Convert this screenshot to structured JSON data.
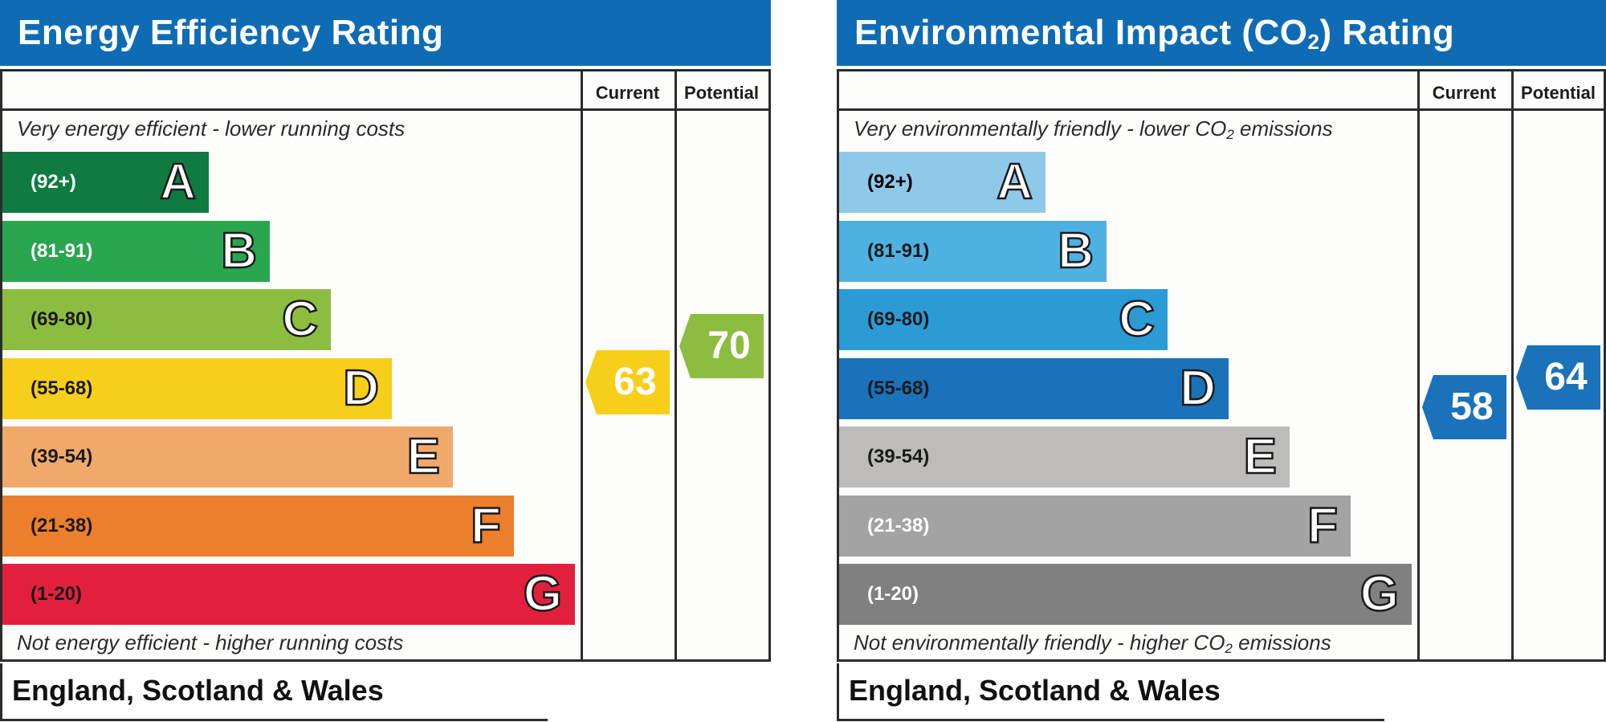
{
  "panels": {
    "eer": {
      "title": "Energy Efficiency Rating",
      "col_current": "Current",
      "col_potential": "Potential",
      "top_caption": "Very energy efficient - lower running costs",
      "bottom_caption": "Not energy efficient - higher running costs",
      "region": "England, Scotland & Wales"
    },
    "co2": {
      "title_main": "Environmental Impact (CO",
      "title_sub": "2",
      "title_end": ") Rating",
      "col_current": "Current",
      "col_potential": "Potential",
      "top_caption_main": "Very environmentally friendly - lower CO",
      "top_caption_sub": "2",
      "top_caption_end": " emissions",
      "bottom_caption_main": "Not environmentally friendly - higher CO",
      "bottom_caption_sub": "2",
      "bottom_caption_end": " emissions",
      "region": "England, Scotland & Wales"
    }
  },
  "chart_data": [
    {
      "type": "bar",
      "bands": [
        {
          "letter": "A",
          "range": "(92+)",
          "color": "#0f7b41",
          "text_color": "#ffffff"
        },
        {
          "letter": "B",
          "range": "(81-91)",
          "color": "#2aa650",
          "text_color": "#ffffff"
        },
        {
          "letter": "C",
          "range": "(69-80)",
          "color": "#8cbd40",
          "text_color": "#1a1a1a"
        },
        {
          "letter": "D",
          "range": "(55-68)",
          "color": "#f7cf1b",
          "text_color": "#1a1a1a"
        },
        {
          "letter": "E",
          "range": "(39-54)",
          "color": "#f1a96b",
          "text_color": "#1a1a1a"
        },
        {
          "letter": "F",
          "range": "(21-38)",
          "color": "#ec7f2b",
          "text_color": "#1a1a1a"
        },
        {
          "letter": "G",
          "range": "(1-20)",
          "color": "#e2203d",
          "text_color": "#1a1a1a"
        }
      ],
      "current": {
        "value": 63,
        "band": "D",
        "color": "#f7cf1b"
      },
      "potential": {
        "value": 70,
        "band": "C",
        "color": "#8cbd40"
      }
    },
    {
      "type": "bar",
      "bands": [
        {
          "letter": "A",
          "range": "(92+)",
          "color": "#8ec9ea",
          "text_color": "#000000"
        },
        {
          "letter": "B",
          "range": "(81-91)",
          "color": "#4fb1e1",
          "text_color": "#1a1a1a"
        },
        {
          "letter": "C",
          "range": "(69-80)",
          "color": "#2a9bd4",
          "text_color": "#1a1a1a"
        },
        {
          "letter": "D",
          "range": "(55-68)",
          "color": "#1a72ba",
          "text_color": "#1a1a1a"
        },
        {
          "letter": "E",
          "range": "(39-54)",
          "color": "#bdbcba",
          "text_color": "#1a1a1a"
        },
        {
          "letter": "F",
          "range": "(21-38)",
          "color": "#a3a3a3",
          "text_color": "#ffffff"
        },
        {
          "letter": "G",
          "range": "(1-20)",
          "color": "#808080",
          "text_color": "#ffffff"
        }
      ],
      "current": {
        "value": 58,
        "band": "D",
        "color": "#1a72ba"
      },
      "potential": {
        "value": 64,
        "band": "D",
        "color": "#1a72ba"
      }
    }
  ]
}
